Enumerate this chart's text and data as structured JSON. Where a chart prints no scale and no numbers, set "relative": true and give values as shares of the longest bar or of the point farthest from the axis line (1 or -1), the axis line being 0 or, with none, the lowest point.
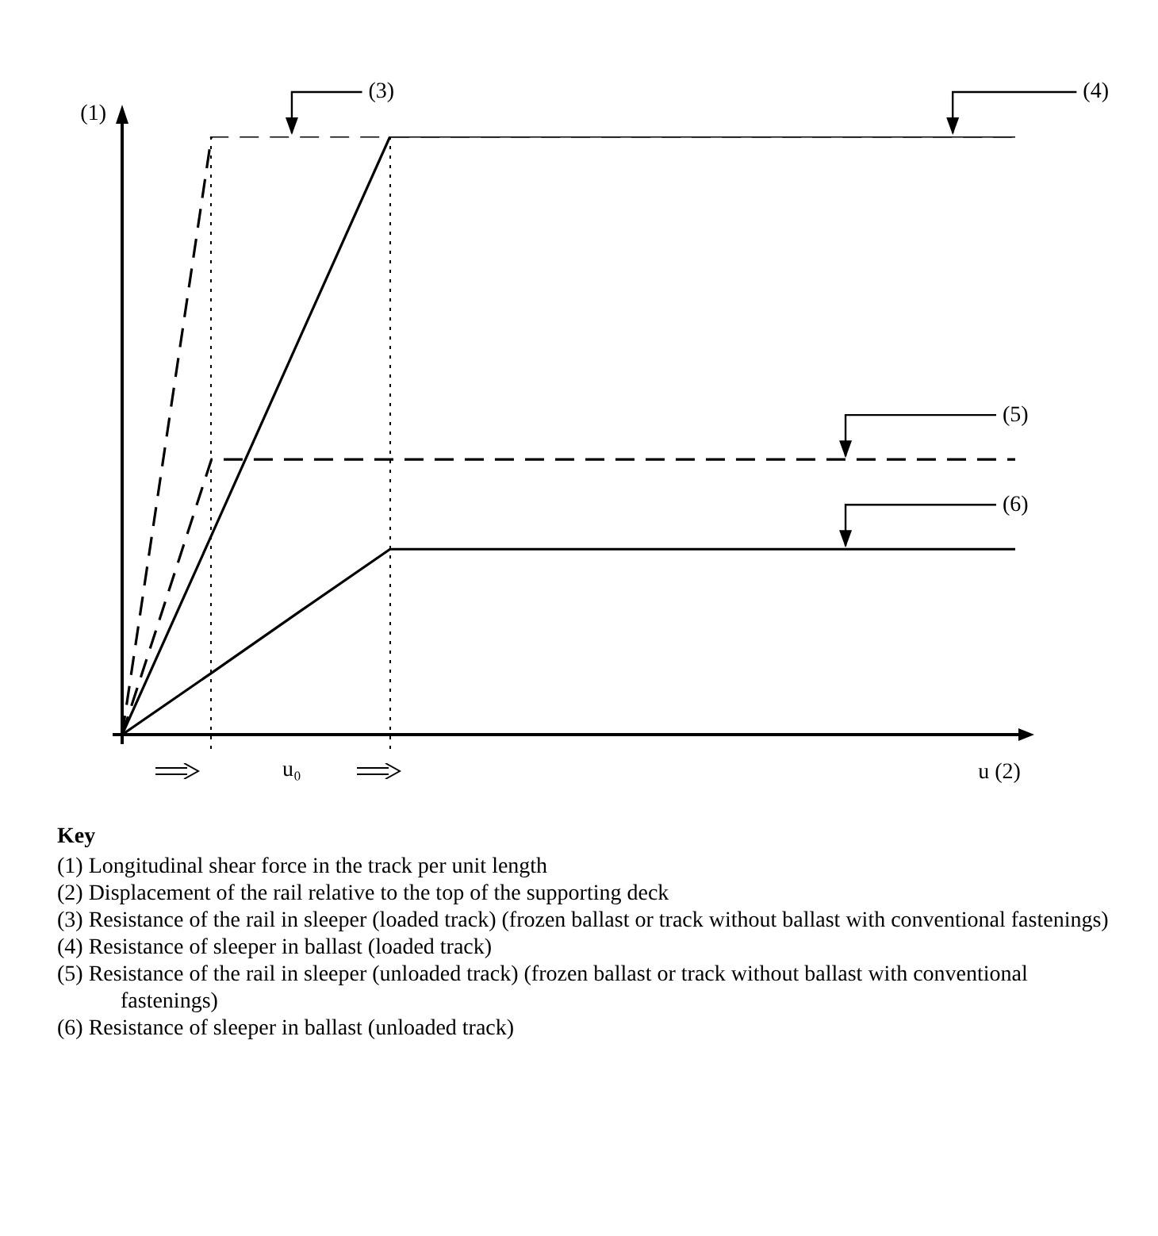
{
  "chart_data": {
    "type": "line",
    "relative": true,
    "ylabel": "(1)",
    "xlabel": "u (2)",
    "categories": [
      null,
      null,
      null,
      null,
      null,
      null,
      null,
      null,
      null,
      null,
      null
    ],
    "series": [
      {
        "name": "(3)",
        "color": "#000000",
        "line_style": "dashed",
        "values": [
          0,
          1,
          1,
          1,
          1,
          1,
          1,
          1,
          1,
          1,
          1
        ]
      },
      {
        "name": "(4)",
        "color": "#000000",
        "line_style": "solid",
        "values": [
          0,
          0.333,
          0.667,
          1,
          1,
          1,
          1,
          1,
          1,
          1,
          1
        ]
      },
      {
        "name": "(5)",
        "color": "#000000",
        "line_style": "dashed",
        "values": [
          0,
          0.46,
          0.46,
          0.46,
          0.46,
          0.46,
          0.46,
          0.46,
          0.46,
          0.46,
          0.46
        ]
      },
      {
        "name": "(6)",
        "color": "#000000",
        "line_style": "solid",
        "values": [
          0,
          0.103,
          0.207,
          0.31,
          0.31,
          0.31,
          0.31,
          0.31,
          0.31,
          0.31,
          0.31
        ]
      }
    ],
    "marker": "none",
    "legend": false,
    "annotations": [
      "u₀",
      "Key",
      "(1) Longitudinal shear force in the track per unit length",
      "(2) Displacement of the rail relative to the top of the supporting deck",
      "(3) Resistance of the rail in sleeper (loaded track) (frozen ballast or track without ballast with conventional fastenings)",
      "(4) Resistance of sleeper in ballast (loaded track)",
      "(5) Resistance of the rail in sleeper (unloaded track) (frozen ballast or track without ballast with conventional fastenings)",
      "(6) Resistance of sleeper in ballast (unloaded track)"
    ]
  }
}
